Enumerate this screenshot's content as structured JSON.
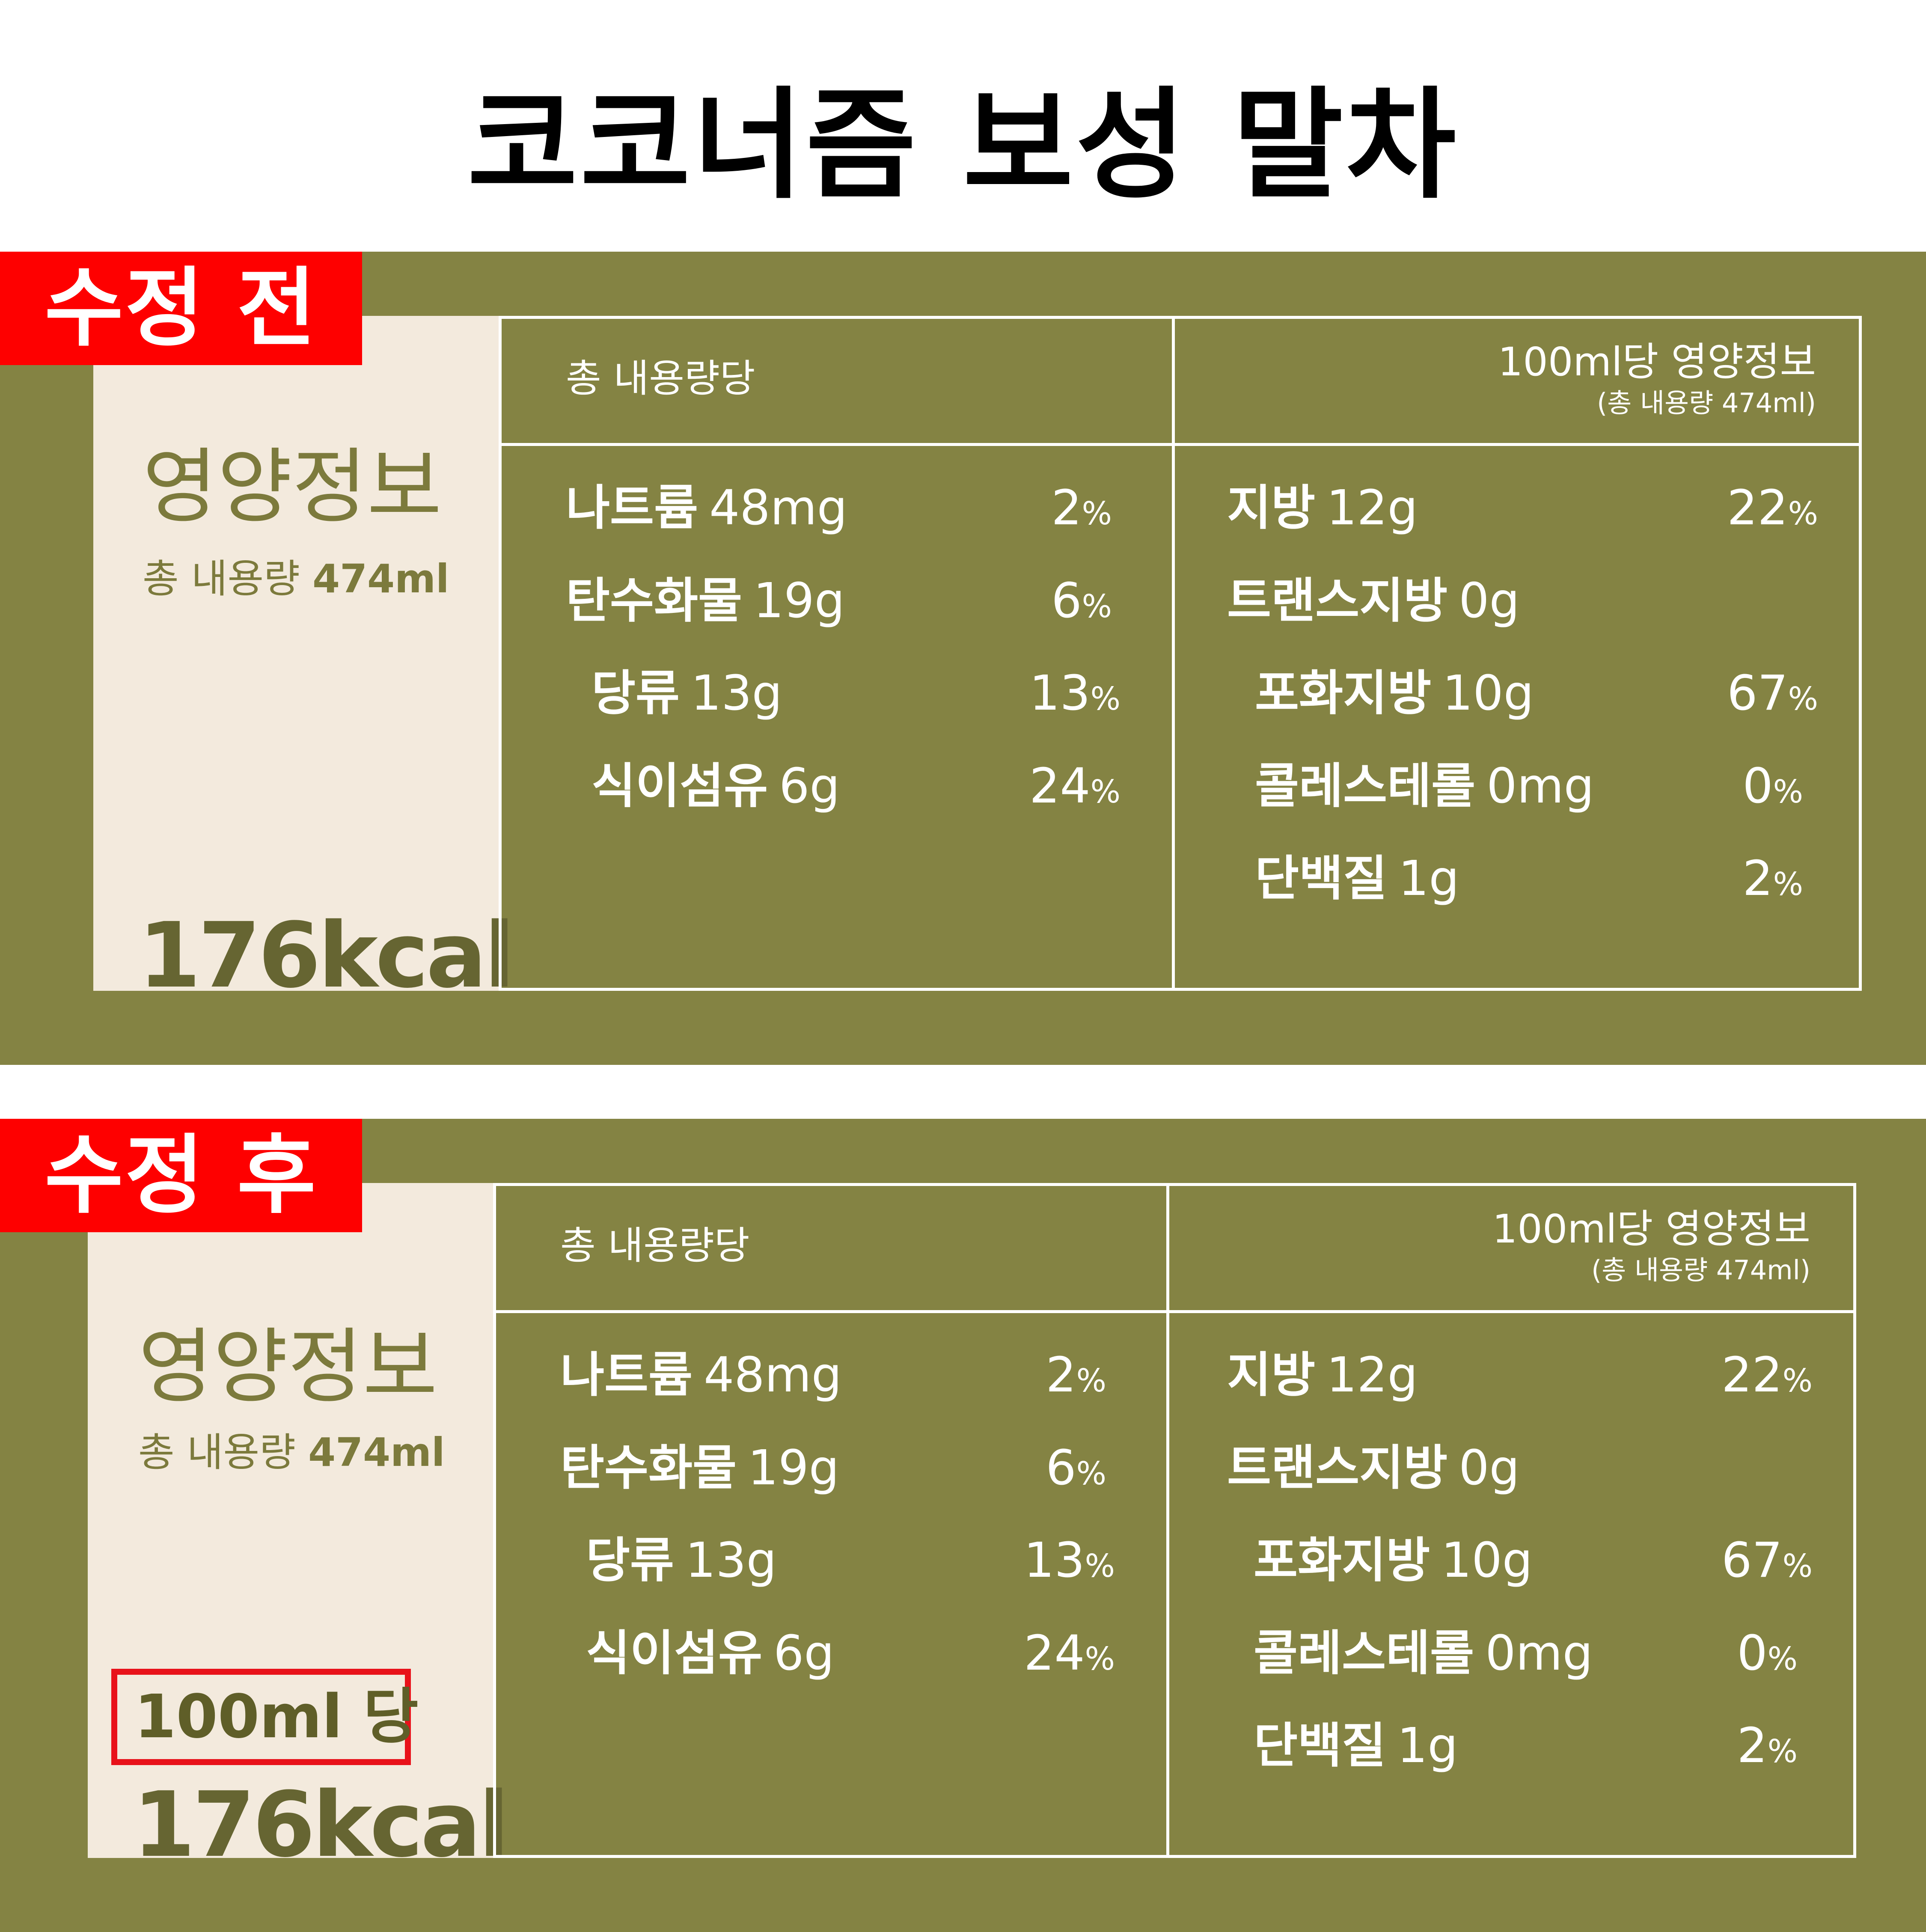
{
  "page": {
    "title": "코코너즘 보성 말차"
  },
  "sections": [
    {
      "tag": "수정 전",
      "label": {
        "title": "영양정보",
        "volume_prefix": "총 내용량",
        "volume_value": "474ml",
        "per100": "",
        "kcal": "176kcal"
      },
      "left_header": "총 내용량당",
      "right_header_main": "100ml당 영양정보",
      "right_header_sub": "(총 내용량 474ml)",
      "left_rows": [
        {
          "name": "나트륨",
          "amount": "48mg",
          "percent": "2",
          "unit": "%"
        },
        {
          "name": "탄수화물",
          "amount": "19g",
          "percent": "6",
          "unit": "%"
        },
        {
          "name": "당류",
          "amount": "13g",
          "percent": "13",
          "unit": "%"
        },
        {
          "name": "식이섬유",
          "amount": "6g",
          "percent": "24",
          "unit": "%"
        }
      ],
      "right_rows": [
        {
          "name": "지방",
          "amount": "12g",
          "percent": "22",
          "unit": "%"
        },
        {
          "name": "트랜스지방",
          "amount": "0g",
          "percent": "",
          "unit": ""
        },
        {
          "name": "포화지방",
          "amount": "10g",
          "percent": "67",
          "unit": "%"
        },
        {
          "name": "콜레스테롤",
          "amount": "0mg",
          "percent": "0",
          "unit": "%"
        },
        {
          "name": "단백질",
          "amount": "1g",
          "percent": "2",
          "unit": "%"
        }
      ]
    },
    {
      "tag": "수정 후",
      "label": {
        "title": "영양정보",
        "volume_prefix": "총 내용량",
        "volume_value": "474ml",
        "per100": "100ml 당",
        "kcal": "176kcal"
      },
      "left_header": "총 내용량당",
      "right_header_main": "100ml당 영양정보",
      "right_header_sub": "(총 내용량 474ml)",
      "left_rows": [
        {
          "name": "나트륨",
          "amount": "48mg",
          "percent": "2",
          "unit": "%"
        },
        {
          "name": "탄수화물",
          "amount": "19g",
          "percent": "6",
          "unit": "%"
        },
        {
          "name": "당류",
          "amount": "13g",
          "percent": "13",
          "unit": "%"
        },
        {
          "name": "식이섬유",
          "amount": "6g",
          "percent": "24",
          "unit": "%"
        }
      ],
      "right_rows": [
        {
          "name": "지방",
          "amount": "12g",
          "percent": "22",
          "unit": "%"
        },
        {
          "name": "트랜스지방",
          "amount": "0g",
          "percent": "",
          "unit": ""
        },
        {
          "name": "포화지방",
          "amount": "10g",
          "percent": "67",
          "unit": "%"
        },
        {
          "name": "콜레스테롤",
          "amount": "0mg",
          "percent": "0",
          "unit": "%"
        },
        {
          "name": "단백질",
          "amount": "1g",
          "percent": "2",
          "unit": "%"
        }
      ]
    }
  ],
  "colors": {
    "panel_bg": "#848343",
    "label_bg": "#f3eadd",
    "label_text": "#7c7a3c",
    "tag_red": "#fe0000",
    "highlight_border": "#e8121a"
  }
}
